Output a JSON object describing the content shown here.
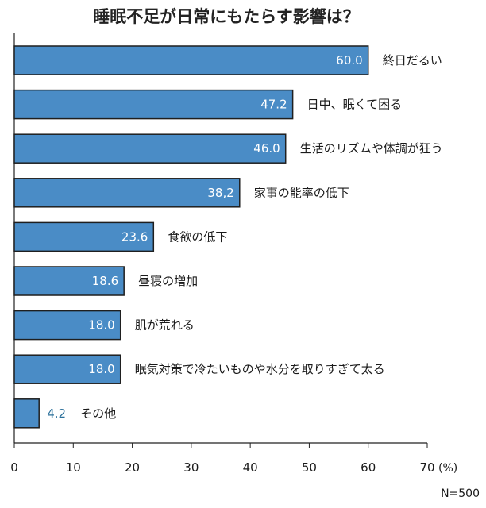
{
  "chart_data": {
    "type": "bar",
    "orientation": "horizontal",
    "title": "睡眠不足が日常にもたらす影響は？",
    "categories": [
      "終日だるい",
      "日中、眠くて困る",
      "生活のリズムや体調が狂う",
      "家事の能率の低下",
      "食欲の低下",
      "昼寝の増加",
      "肌が荒れる",
      "眠気対策で冷たいものや水分を取りすぎて太る",
      "その他"
    ],
    "values": [
      60.0,
      47.2,
      46.0,
      38.2,
      23.6,
      18.6,
      18.0,
      18.0,
      4.2
    ],
    "value_labels": [
      "60.0",
      "47.2",
      "46.0",
      "38,2",
      "23.6",
      "18.6",
      "18.0",
      "18.0",
      "4.2"
    ],
    "xlim": [
      0,
      70
    ],
    "xticks": [
      "0",
      "10",
      "20",
      "30",
      "40",
      "50",
      "60",
      "70"
    ],
    "x_unit": "(%)",
    "note": "N=500",
    "grid": false,
    "colors": {
      "bar_fill": "#4a8cc6",
      "bar_stroke": "#1f1f1f",
      "inside_label": "#ffffff",
      "outside_label": "#2a6f9a"
    }
  }
}
